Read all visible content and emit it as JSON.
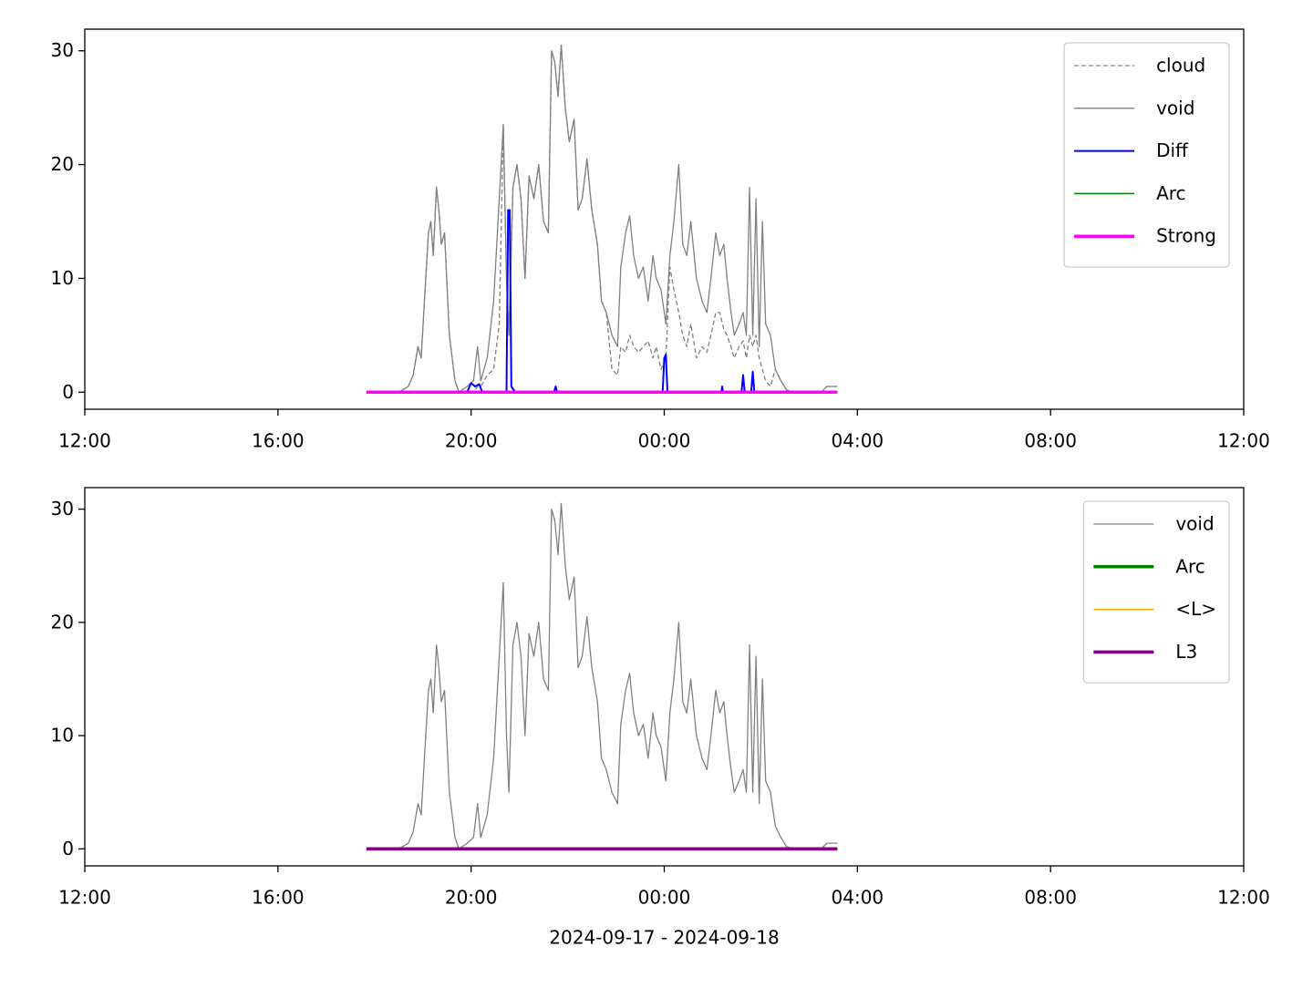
{
  "chart_data": [
    {
      "type": "line",
      "x": [
        "2024-09-17T17:50",
        "2024-09-17T18:30",
        "2024-09-17T18:42",
        "2024-09-17T18:48",
        "2024-09-17T18:54",
        "2024-09-17T18:58",
        "2024-09-17T19:02",
        "2024-09-17T19:07",
        "2024-09-17T19:10",
        "2024-09-17T19:13",
        "2024-09-17T19:17",
        "2024-09-17T19:20",
        "2024-09-17T19:23",
        "2024-09-17T19:27",
        "2024-09-17T19:33",
        "2024-09-17T19:40",
        "2024-09-17T19:45",
        "2024-09-17T19:55",
        "2024-09-17T20:03",
        "2024-09-17T20:08",
        "2024-09-17T20:12",
        "2024-09-17T20:20",
        "2024-09-17T20:28",
        "2024-09-17T20:35",
        "2024-09-17T20:40",
        "2024-09-17T20:44",
        "2024-09-17T20:47",
        "2024-09-17T20:52",
        "2024-09-17T20:57",
        "2024-09-17T21:02",
        "2024-09-17T21:07",
        "2024-09-17T21:12",
        "2024-09-17T21:18",
        "2024-09-17T21:24",
        "2024-09-17T21:30",
        "2024-09-17T21:36",
        "2024-09-17T21:40",
        "2024-09-17T21:44",
        "2024-09-17T21:48",
        "2024-09-17T21:52",
        "2024-09-17T21:57",
        "2024-09-17T22:02",
        "2024-09-17T22:08",
        "2024-09-17T22:13",
        "2024-09-17T22:18",
        "2024-09-17T22:24",
        "2024-09-17T22:30",
        "2024-09-17T22:37",
        "2024-09-17T22:42",
        "2024-09-17T22:48",
        "2024-09-17T22:55",
        "2024-09-17T23:02",
        "2024-09-17T23:06",
        "2024-09-17T23:12",
        "2024-09-17T23:17",
        "2024-09-17T23:22",
        "2024-09-17T23:28",
        "2024-09-17T23:34",
        "2024-09-17T23:40",
        "2024-09-17T23:46",
        "2024-09-17T23:50",
        "2024-09-17T23:56",
        "2024-09-18T00:02",
        "2024-09-18T00:07",
        "2024-09-18T00:12",
        "2024-09-18T00:18",
        "2024-09-18T00:23",
        "2024-09-18T00:28",
        "2024-09-18T00:33",
        "2024-09-18T00:40",
        "2024-09-18T00:47",
        "2024-09-18T00:53",
        "2024-09-18T00:58",
        "2024-09-18T01:04",
        "2024-09-18T01:09",
        "2024-09-18T01:14",
        "2024-09-18T01:18",
        "2024-09-18T01:23",
        "2024-09-18T01:27",
        "2024-09-18T01:33",
        "2024-09-18T01:38",
        "2024-09-18T01:42",
        "2024-09-18T01:46",
        "2024-09-18T01:50",
        "2024-09-18T01:54",
        "2024-09-18T01:58",
        "2024-09-18T02:02",
        "2024-09-18T02:06",
        "2024-09-18T02:12",
        "2024-09-18T02:18",
        "2024-09-18T02:25",
        "2024-09-18T02:32",
        "2024-09-18T02:40",
        "2024-09-18T03:15",
        "2024-09-18T03:22",
        "2024-09-18T03:35"
      ],
      "series": [
        {
          "name": "cloud",
          "color": "#808080",
          "width": 1.3,
          "dash": true,
          "values": [
            0,
            0,
            0.5,
            1.5,
            4,
            3,
            8,
            14,
            15,
            12,
            18,
            16,
            13,
            14,
            5,
            1,
            0,
            0,
            0,
            0.5,
            0.5,
            1.5,
            2,
            6,
            23.5,
            10,
            5,
            18,
            20,
            17,
            10,
            19,
            17,
            20,
            15,
            14,
            30,
            29,
            26,
            30.5,
            25,
            22,
            24,
            16,
            17,
            20.5,
            16,
            13,
            8,
            7,
            2,
            1.5,
            4,
            3.5,
            5,
            4,
            3.5,
            4,
            4.5,
            3,
            4,
            2,
            3,
            11,
            9,
            7,
            5,
            4,
            6,
            3,
            4,
            3.5,
            5,
            7,
            7,
            5.5,
            5,
            4,
            3,
            4,
            4.5,
            3,
            5,
            4,
            5,
            3,
            2,
            1,
            0.5,
            2,
            1,
            0.2,
            0,
            0,
            0.5,
            0.5
          ]
        },
        {
          "name": "void",
          "color": "#808080",
          "width": 1.3,
          "values": [
            0,
            0,
            0.5,
            1.5,
            4,
            3,
            8,
            14,
            15,
            12,
            18,
            16,
            13,
            14,
            5,
            1,
            0,
            0.5,
            1,
            4,
            1,
            3,
            8,
            17,
            23.5,
            10,
            5,
            18,
            20,
            17,
            10,
            19,
            17,
            20,
            15,
            14,
            30,
            29,
            26,
            30.5,
            25,
            22,
            24,
            16,
            17,
            20.5,
            16,
            13,
            8,
            7,
            5,
            4,
            11,
            14,
            15.5,
            12,
            10,
            11,
            8,
            12,
            10,
            9,
            6,
            12,
            15,
            20,
            13,
            12,
            15,
            10,
            8,
            7,
            10,
            14,
            12,
            13,
            10,
            7,
            5,
            6,
            7,
            5,
            18,
            5,
            17,
            4,
            15,
            6,
            5,
            2,
            1,
            0.2,
            0,
            0,
            0.5,
            0.5
          ]
        },
        {
          "name": "Diff",
          "color": "#0000ff",
          "width": 2,
          "x": [
            "2024-09-17T17:50",
            "2024-09-17T19:55",
            "2024-09-17T20:00",
            "2024-09-17T20:05",
            "2024-09-17T20:10",
            "2024-09-17T20:14",
            "2024-09-17T20:44",
            "2024-09-17T20:46",
            "2024-09-17T20:48",
            "2024-09-17T20:50",
            "2024-09-17T20:55",
            "2024-09-17T21:43",
            "2024-09-17T21:45",
            "2024-09-17T21:47",
            "2024-09-17T23:58",
            "2024-09-18T00:00",
            "2024-09-18T00:02",
            "2024-09-18T00:04",
            "2024-09-18T01:11",
            "2024-09-18T01:12",
            "2024-09-18T01:13",
            "2024-09-18T01:36",
            "2024-09-18T01:38",
            "2024-09-18T01:40",
            "2024-09-18T01:48",
            "2024-09-18T01:50",
            "2024-09-18T01:52",
            "2024-09-18T03:35"
          ],
          "values": [
            0,
            0,
            0.8,
            0.5,
            0.7,
            0,
            0,
            16,
            16,
            0.5,
            0,
            0,
            0.5,
            0,
            0,
            3,
            3.3,
            0,
            0,
            0.5,
            0,
            0,
            1.5,
            0,
            0,
            1.8,
            0,
            0
          ]
        },
        {
          "name": "Arc",
          "color": "#008000",
          "width": 1.5,
          "x": [
            "2024-09-17T17:50",
            "2024-09-18T03:35"
          ],
          "values": [
            0,
            0
          ]
        },
        {
          "name": "Strong",
          "color": "#ff00ff",
          "width": 3.5,
          "x": [
            "2024-09-17T17:50",
            "2024-09-18T03:35"
          ],
          "values": [
            0,
            0
          ]
        }
      ],
      "xlim": [
        "2024-09-17T12:00",
        "2024-09-18T12:00"
      ],
      "xticks": [
        {
          "value": "2024-09-17T12:00",
          "label": "12:00"
        },
        {
          "value": "2024-09-17T16:00",
          "label": "16:00"
        },
        {
          "value": "2024-09-17T20:00",
          "label": "20:00"
        },
        {
          "value": "2024-09-18T00:00",
          "label": "00:00"
        },
        {
          "value": "2024-09-18T04:00",
          "label": "04:00"
        },
        {
          "value": "2024-09-18T08:00",
          "label": "08:00"
        },
        {
          "value": "2024-09-18T12:00",
          "label": "12:00"
        }
      ],
      "ylim": [
        -1.5,
        31.9
      ],
      "yticks": [
        0,
        10,
        20,
        30
      ],
      "legend": "upper right"
    },
    {
      "type": "line",
      "x": [
        "2024-09-17T17:50",
        "2024-09-17T18:30",
        "2024-09-17T18:42",
        "2024-09-17T18:48",
        "2024-09-17T18:54",
        "2024-09-17T18:58",
        "2024-09-17T19:02",
        "2024-09-17T19:07",
        "2024-09-17T19:10",
        "2024-09-17T19:13",
        "2024-09-17T19:17",
        "2024-09-17T19:20",
        "2024-09-17T19:23",
        "2024-09-17T19:27",
        "2024-09-17T19:33",
        "2024-09-17T19:40",
        "2024-09-17T19:45",
        "2024-09-17T19:55",
        "2024-09-17T20:03",
        "2024-09-17T20:08",
        "2024-09-17T20:12",
        "2024-09-17T20:20",
        "2024-09-17T20:28",
        "2024-09-17T20:35",
        "2024-09-17T20:40",
        "2024-09-17T20:44",
        "2024-09-17T20:47",
        "2024-09-17T20:52",
        "2024-09-17T20:57",
        "2024-09-17T21:02",
        "2024-09-17T21:07",
        "2024-09-17T21:12",
        "2024-09-17T21:18",
        "2024-09-17T21:24",
        "2024-09-17T21:30",
        "2024-09-17T21:36",
        "2024-09-17T21:40",
        "2024-09-17T21:44",
        "2024-09-17T21:48",
        "2024-09-17T21:52",
        "2024-09-17T21:57",
        "2024-09-17T22:02",
        "2024-09-17T22:08",
        "2024-09-17T22:13",
        "2024-09-17T22:18",
        "2024-09-17T22:24",
        "2024-09-17T22:30",
        "2024-09-17T22:37",
        "2024-09-17T22:42",
        "2024-09-17T22:48",
        "2024-09-17T22:55",
        "2024-09-17T23:02",
        "2024-09-17T23:06",
        "2024-09-17T23:12",
        "2024-09-17T23:17",
        "2024-09-17T23:22",
        "2024-09-17T23:28",
        "2024-09-17T23:34",
        "2024-09-17T23:40",
        "2024-09-17T23:46",
        "2024-09-17T23:50",
        "2024-09-17T23:56",
        "2024-09-18T00:02",
        "2024-09-18T00:07",
        "2024-09-18T00:12",
        "2024-09-18T00:18",
        "2024-09-18T00:23",
        "2024-09-18T00:28",
        "2024-09-18T00:33",
        "2024-09-18T00:40",
        "2024-09-18T00:47",
        "2024-09-18T00:53",
        "2024-09-18T00:58",
        "2024-09-18T01:04",
        "2024-09-18T01:09",
        "2024-09-18T01:14",
        "2024-09-18T01:18",
        "2024-09-18T01:23",
        "2024-09-18T01:27",
        "2024-09-18T01:33",
        "2024-09-18T01:38",
        "2024-09-18T01:42",
        "2024-09-18T01:46",
        "2024-09-18T01:50",
        "2024-09-18T01:54",
        "2024-09-18T01:58",
        "2024-09-18T02:02",
        "2024-09-18T02:06",
        "2024-09-18T02:12",
        "2024-09-18T02:18",
        "2024-09-18T02:25",
        "2024-09-18T02:32",
        "2024-09-18T02:40",
        "2024-09-18T03:15",
        "2024-09-18T03:22",
        "2024-09-18T03:35"
      ],
      "series": [
        {
          "name": "void",
          "color": "#808080",
          "width": 1.3,
          "values": [
            0,
            0,
            0.5,
            1.5,
            4,
            3,
            8,
            14,
            15,
            12,
            18,
            16,
            13,
            14,
            5,
            1,
            0,
            0.5,
            1,
            4,
            1,
            3,
            8,
            17,
            23.5,
            10,
            5,
            18,
            20,
            17,
            10,
            19,
            17,
            20,
            15,
            14,
            30,
            29,
            26,
            30.5,
            25,
            22,
            24,
            16,
            17,
            20.5,
            16,
            13,
            8,
            7,
            5,
            4,
            11,
            14,
            15.5,
            12,
            10,
            11,
            8,
            12,
            10,
            9,
            6,
            12,
            15,
            20,
            13,
            12,
            15,
            10,
            8,
            7,
            10,
            14,
            12,
            13,
            10,
            7,
            5,
            6,
            7,
            5,
            18,
            5,
            17,
            4,
            15,
            6,
            5,
            2,
            1,
            0.2,
            0,
            0,
            0.5,
            0.5
          ]
        },
        {
          "name": "Arc",
          "color": "#008000",
          "width": 3.5,
          "x": [
            "2024-09-17T17:50",
            "2024-09-18T03:35"
          ],
          "values": [
            0,
            0
          ]
        },
        {
          "name": "<L>",
          "color": "#ffa500",
          "width": 1.5,
          "x": [
            "2024-09-17T17:50",
            "2024-09-18T03:35"
          ],
          "values": [
            0,
            0
          ]
        },
        {
          "name": "L3",
          "color": "#800080",
          "width": 3.5,
          "x": [
            "2024-09-17T17:50",
            "2024-09-18T03:35"
          ],
          "values": [
            0,
            0
          ]
        }
      ],
      "xlim": [
        "2024-09-17T12:00",
        "2024-09-18T12:00"
      ],
      "xticks": [
        {
          "value": "2024-09-17T12:00",
          "label": "12:00"
        },
        {
          "value": "2024-09-17T16:00",
          "label": "16:00"
        },
        {
          "value": "2024-09-17T20:00",
          "label": "20:00"
        },
        {
          "value": "2024-09-18T00:00",
          "label": "00:00"
        },
        {
          "value": "2024-09-18T04:00",
          "label": "04:00"
        },
        {
          "value": "2024-09-18T08:00",
          "label": "08:00"
        },
        {
          "value": "2024-09-18T12:00",
          "label": "12:00"
        }
      ],
      "ylim": [
        -1.5,
        31.9
      ],
      "yticks": [
        0,
        10,
        20,
        30
      ],
      "legend": "upper right",
      "xlabel": "2024-09-17 - 2024-09-18"
    }
  ]
}
